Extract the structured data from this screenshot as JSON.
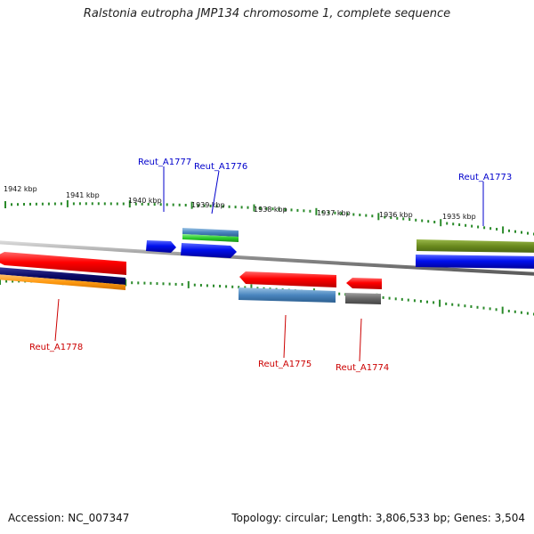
{
  "title": "Ralstonia eutropha JMP134 chromosome 1, complete sequence",
  "footer": {
    "accession": "Accession: NC_007347",
    "summary": "Topology: circular; Length: 3,806,533 bp; Genes: 3,504"
  },
  "colors": {
    "backbone": "#8a8a8a",
    "ticks": "#2a8a2a",
    "forward_label": "#0000cc",
    "reverse_label": "#cc0000"
  },
  "kbp_ticks": [
    {
      "label": "1942 kbp"
    },
    {
      "label": "1941 kbp"
    },
    {
      "label": "1940 kbp"
    },
    {
      "label": "1939 kbp"
    },
    {
      "label": "1938 kbp"
    },
    {
      "label": "1937 kbp"
    },
    {
      "label": "1936 kbp"
    },
    {
      "label": "1935 kbp"
    }
  ],
  "genes": [
    {
      "label": "Reut_A1777",
      "strand": "forward"
    },
    {
      "label": "Reut_A1776",
      "strand": "forward"
    },
    {
      "label": "Reut_A1773",
      "strand": "forward"
    },
    {
      "label": "Reut_A1778",
      "strand": "reverse"
    },
    {
      "label": "Reut_A1775",
      "strand": "reverse"
    },
    {
      "label": "Reut_A1774",
      "strand": "reverse"
    }
  ]
}
